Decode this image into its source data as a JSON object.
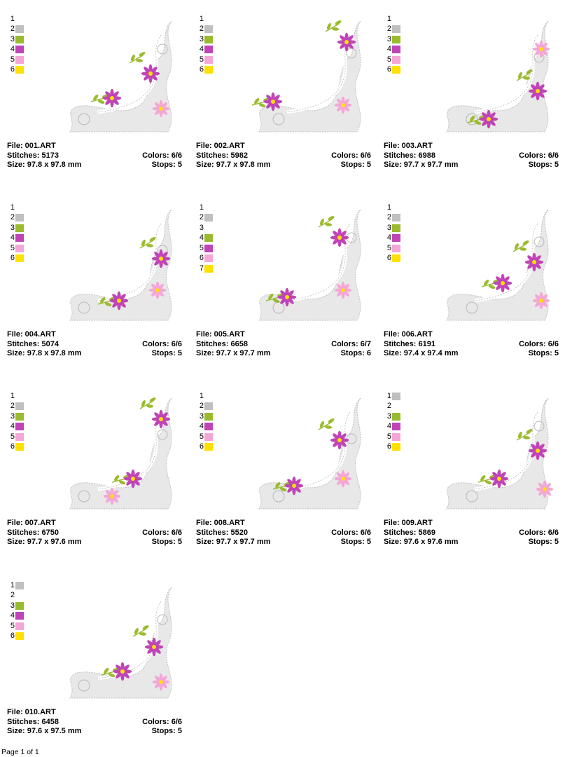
{
  "colors": {
    "1": "#ffffff",
    "2": "#c0c0c0",
    "3": "#9bbb2f",
    "4": "#c044b8",
    "5": "#f4a6d6",
    "6": "#ffe000",
    "7": "#ffe000"
  },
  "labels": {
    "file": "File: ",
    "stitches": "Stitches: ",
    "size": "Size: ",
    "colors": "Colors: ",
    "stops": "Stops: "
  },
  "designs": [
    {
      "file": "001.ART",
      "stitches": "5173",
      "size": "97.8 x 97.8 mm",
      "colors": "6/6",
      "stops": "5",
      "swatches": [
        {
          "n": "1",
          "c": "1"
        },
        {
          "n": "2",
          "c": "2"
        },
        {
          "n": "3",
          "c": "3"
        },
        {
          "n": "4",
          "c": "4"
        },
        {
          "n": "5",
          "c": "5"
        },
        {
          "n": "6",
          "c": "6"
        }
      ]
    },
    {
      "file": "002.ART",
      "stitches": "5982",
      "size": "97.7 x 97.8 mm",
      "colors": "6/6",
      "stops": "5",
      "swatches": [
        {
          "n": "1",
          "c": "1"
        },
        {
          "n": "2",
          "c": "2"
        },
        {
          "n": "3",
          "c": "3"
        },
        {
          "n": "4",
          "c": "4"
        },
        {
          "n": "5",
          "c": "5"
        },
        {
          "n": "6",
          "c": "6"
        }
      ]
    },
    {
      "file": "003.ART",
      "stitches": "6988",
      "size": "97.7 x 97.7 mm",
      "colors": "6/6",
      "stops": "5",
      "swatches": [
        {
          "n": "1",
          "c": "1"
        },
        {
          "n": "2",
          "c": "2"
        },
        {
          "n": "3",
          "c": "3"
        },
        {
          "n": "4",
          "c": "4"
        },
        {
          "n": "5",
          "c": "5"
        },
        {
          "n": "6",
          "c": "6"
        }
      ]
    },
    {
      "file": "004.ART",
      "stitches": "5074",
      "size": "97.8 x 97.8 mm",
      "colors": "6/6",
      "stops": "5",
      "swatches": [
        {
          "n": "1",
          "c": "1"
        },
        {
          "n": "2",
          "c": "2"
        },
        {
          "n": "3",
          "c": "3"
        },
        {
          "n": "4",
          "c": "4"
        },
        {
          "n": "5",
          "c": "5"
        },
        {
          "n": "6",
          "c": "6"
        }
      ]
    },
    {
      "file": "005.ART",
      "stitches": "6658",
      "size": "97.7 x 97.7 mm",
      "colors": "6/7",
      "stops": "6",
      "swatches": [
        {
          "n": "1",
          "c": "1"
        },
        {
          "n": "2",
          "c": "2"
        },
        {
          "n": "3",
          "c": "1"
        },
        {
          "n": "4",
          "c": "3"
        },
        {
          "n": "5",
          "c": "4"
        },
        {
          "n": "6",
          "c": "5"
        },
        {
          "n": "7",
          "c": "6"
        }
      ]
    },
    {
      "file": "006.ART",
      "stitches": "6191",
      "size": "97.4 x 97.4 mm",
      "colors": "6/6",
      "stops": "5",
      "swatches": [
        {
          "n": "1",
          "c": "1"
        },
        {
          "n": "2",
          "c": "2"
        },
        {
          "n": "3",
          "c": "3"
        },
        {
          "n": "4",
          "c": "4"
        },
        {
          "n": "5",
          "c": "5"
        },
        {
          "n": "6",
          "c": "6"
        }
      ]
    },
    {
      "file": "007.ART",
      "stitches": "6750",
      "size": "97.7 x 97.6 mm",
      "colors": "6/6",
      "stops": "5",
      "swatches": [
        {
          "n": "1",
          "c": "1"
        },
        {
          "n": "2",
          "c": "2"
        },
        {
          "n": "3",
          "c": "3"
        },
        {
          "n": "4",
          "c": "4"
        },
        {
          "n": "5",
          "c": "5"
        },
        {
          "n": "6",
          "c": "6"
        }
      ]
    },
    {
      "file": "008.ART",
      "stitches": "5520",
      "size": "97.7 x 97.7 mm",
      "colors": "6/6",
      "stops": "5",
      "swatches": [
        {
          "n": "1",
          "c": "1"
        },
        {
          "n": "2",
          "c": "2"
        },
        {
          "n": "3",
          "c": "3"
        },
        {
          "n": "4",
          "c": "4"
        },
        {
          "n": "5",
          "c": "5"
        },
        {
          "n": "6",
          "c": "6"
        }
      ]
    },
    {
      "file": "009.ART",
      "stitches": "5869",
      "size": "97.6 x 97.6 mm",
      "colors": "6/6",
      "stops": "5",
      "swatches": [
        {
          "n": "1",
          "c": "2"
        },
        {
          "n": "2",
          "c": "1"
        },
        {
          "n": "3",
          "c": "3"
        },
        {
          "n": "4",
          "c": "4"
        },
        {
          "n": "5",
          "c": "5"
        },
        {
          "n": "6",
          "c": "6"
        }
      ]
    },
    {
      "file": "010.ART",
      "stitches": "6458",
      "size": "97.6 x 97.5 mm",
      "colors": "6/6",
      "stops": "5",
      "swatches": [
        {
          "n": "1",
          "c": "2"
        },
        {
          "n": "2",
          "c": "1"
        },
        {
          "n": "3",
          "c": "3"
        },
        {
          "n": "4",
          "c": "4"
        },
        {
          "n": "5",
          "c": "5"
        },
        {
          "n": "6",
          "c": "6"
        }
      ]
    }
  ],
  "footer": "Page 1 of 1"
}
